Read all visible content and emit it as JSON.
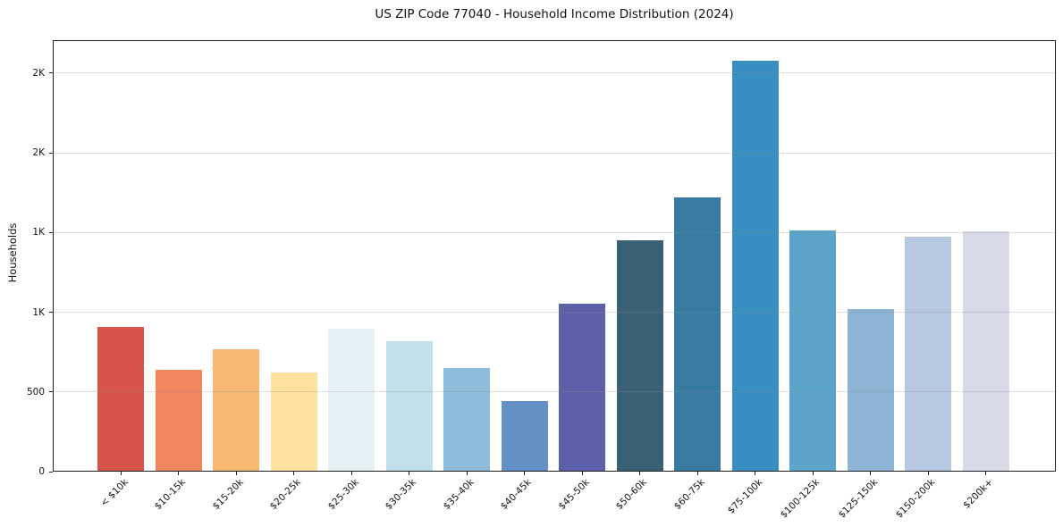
{
  "chart_data": {
    "type": "bar",
    "title": "US ZIP Code 77040 - Household Income Distribution (2024)",
    "xlabel": "",
    "ylabel": "Households",
    "categories": [
      "< $10k",
      "$10-15k",
      "$15-20k",
      "$20-25k",
      "$25-30k",
      "$30-35k",
      "$35-40k",
      "$40-45k",
      "$45-50k",
      "$50-60k",
      "$60-75k",
      "$75-100k",
      "$100-125k",
      "$125-150k",
      "$150-200k",
      "$200k+"
    ],
    "values": [
      910,
      640,
      765,
      620,
      895,
      820,
      650,
      445,
      1055,
      1450,
      1720,
      2580,
      1515,
      1020,
      1475,
      1505
    ],
    "bar_colors": [
      "#d6544a",
      "#f0875f",
      "#f9b873",
      "#fde29d",
      "#e5f1f5",
      "#bfe0ea",
      "#90bcdb",
      "#6590c6",
      "#5b60a9",
      "#3a6076",
      "#387aa2",
      "#398ec1",
      "#5ca4ca",
      "#8db4d5",
      "#b6c8e0",
      "#d8dae8"
    ],
    "ylim": [
      0,
      2706
    ],
    "y_ticks": [
      {
        "value": 0,
        "label": "0"
      },
      {
        "value": 500,
        "label": "500"
      },
      {
        "value": 1000,
        "label": "1K"
      },
      {
        "value": 1500,
        "label": "1K"
      },
      {
        "value": 2000,
        "label": "2K"
      },
      {
        "value": 2500,
        "label": "2K"
      }
    ],
    "grid": "horizontal",
    "legend": "none",
    "frame": "box"
  }
}
